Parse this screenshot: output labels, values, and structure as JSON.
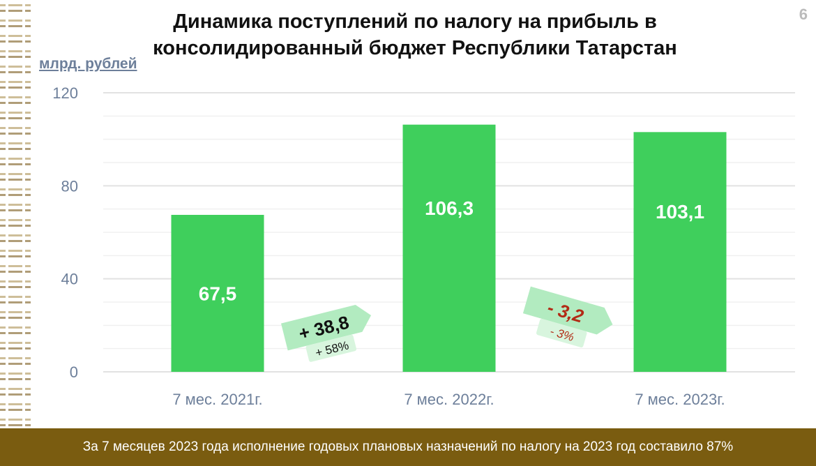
{
  "page_number": "6",
  "footer": "За 7 месяцев 2023 года исполнение годовых плановых назначений по налогу на 2023 год составило 87%",
  "chart_data": {
    "type": "bar",
    "title": "Динамика поступлений по налогу на прибыль в консолидированный бюджет Республики Татарстан",
    "ylabel": "млрд. рублей",
    "categories": [
      "7 мес. 2021г.",
      "7 мес. 2022г.",
      "7 мес. 2023г."
    ],
    "values": [
      67.5,
      106.3,
      103.1
    ],
    "data_labels": [
      "67,5",
      "106,3",
      "103,1"
    ],
    "yticks": [
      "0",
      "40",
      "80",
      "120"
    ],
    "ylim": [
      0,
      120
    ],
    "grid": true,
    "bar_color": "#3fcf5c",
    "annotations": [
      {
        "change": "+ 38,8",
        "percent": "+ 58%",
        "color": "#111111"
      },
      {
        "change": "- 3,2",
        "percent": "- 3%",
        "color": "#b22a15"
      }
    ]
  }
}
